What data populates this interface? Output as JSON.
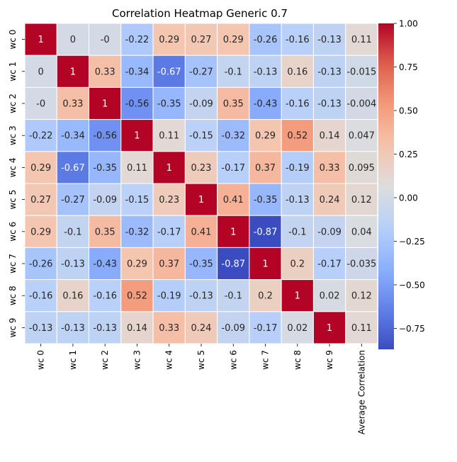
{
  "chart_data": {
    "type": "heatmap",
    "title": "Correlation Heatmap Generic 0.7",
    "row_labels": [
      "wc 0",
      "wc 1",
      "wc 2",
      "wc 3",
      "wc 4",
      "wc 5",
      "wc 6",
      "wc 7",
      "wc 8",
      "wc 9"
    ],
    "col_labels": [
      "wc 0",
      "wc 1",
      "wc 2",
      "wc 3",
      "wc 4",
      "wc 5",
      "wc 6",
      "wc 7",
      "wc 8",
      "wc 9",
      "Average Correlation"
    ],
    "values": [
      [
        "1",
        "0",
        "-0",
        "-0.22",
        "0.29",
        "0.27",
        "0.29",
        "-0.26",
        "-0.16",
        "-0.13",
        "0.11"
      ],
      [
        "0",
        "1",
        "0.33",
        "-0.34",
        "-0.67",
        "-0.27",
        "-0.1",
        "-0.13",
        "0.16",
        "-0.13",
        "-0.015"
      ],
      [
        "-0",
        "0.33",
        "1",
        "-0.56",
        "-0.35",
        "-0.09",
        "0.35",
        "-0.43",
        "-0.16",
        "-0.13",
        "-0.004"
      ],
      [
        "-0.22",
        "-0.34",
        "-0.56",
        "1",
        "0.11",
        "-0.15",
        "-0.32",
        "0.29",
        "0.52",
        "0.14",
        "0.047"
      ],
      [
        "0.29",
        "-0.67",
        "-0.35",
        "0.11",
        "1",
        "0.23",
        "-0.17",
        "0.37",
        "-0.19",
        "0.33",
        "0.095"
      ],
      [
        "0.27",
        "-0.27",
        "-0.09",
        "-0.15",
        "0.23",
        "1",
        "0.41",
        "-0.35",
        "-0.13",
        "0.24",
        "0.12"
      ],
      [
        "0.29",
        "-0.1",
        "0.35",
        "-0.32",
        "-0.17",
        "0.41",
        "1",
        "-0.87",
        "-0.1",
        "-0.09",
        "0.04"
      ],
      [
        "-0.26",
        "-0.13",
        "-0.43",
        "0.29",
        "0.37",
        "-0.35",
        "-0.87",
        "1",
        "0.2",
        "-0.17",
        "-0.035"
      ],
      [
        "-0.16",
        "0.16",
        "-0.16",
        "0.52",
        "-0.19",
        "-0.13",
        "-0.1",
        "0.2",
        "1",
        "0.02",
        "0.12"
      ],
      [
        "-0.13",
        "-0.13",
        "-0.13",
        "0.14",
        "0.33",
        "0.24",
        "-0.09",
        "-0.17",
        "0.02",
        "1",
        "0.11"
      ]
    ],
    "colormap": "coolwarm",
    "vmin": -0.87,
    "vmax": 1.0,
    "colorbar_ticks": [
      {
        "value": 1.0,
        "label": "1.00"
      },
      {
        "value": 0.75,
        "label": "0.75"
      },
      {
        "value": 0.5,
        "label": "0.50"
      },
      {
        "value": 0.25,
        "label": "0.25"
      },
      {
        "value": 0.0,
        "label": "0.00"
      },
      {
        "value": -0.25,
        "label": "−0.25"
      },
      {
        "value": -0.5,
        "label": "−0.50"
      },
      {
        "value": -0.75,
        "label": "−0.75"
      }
    ]
  }
}
